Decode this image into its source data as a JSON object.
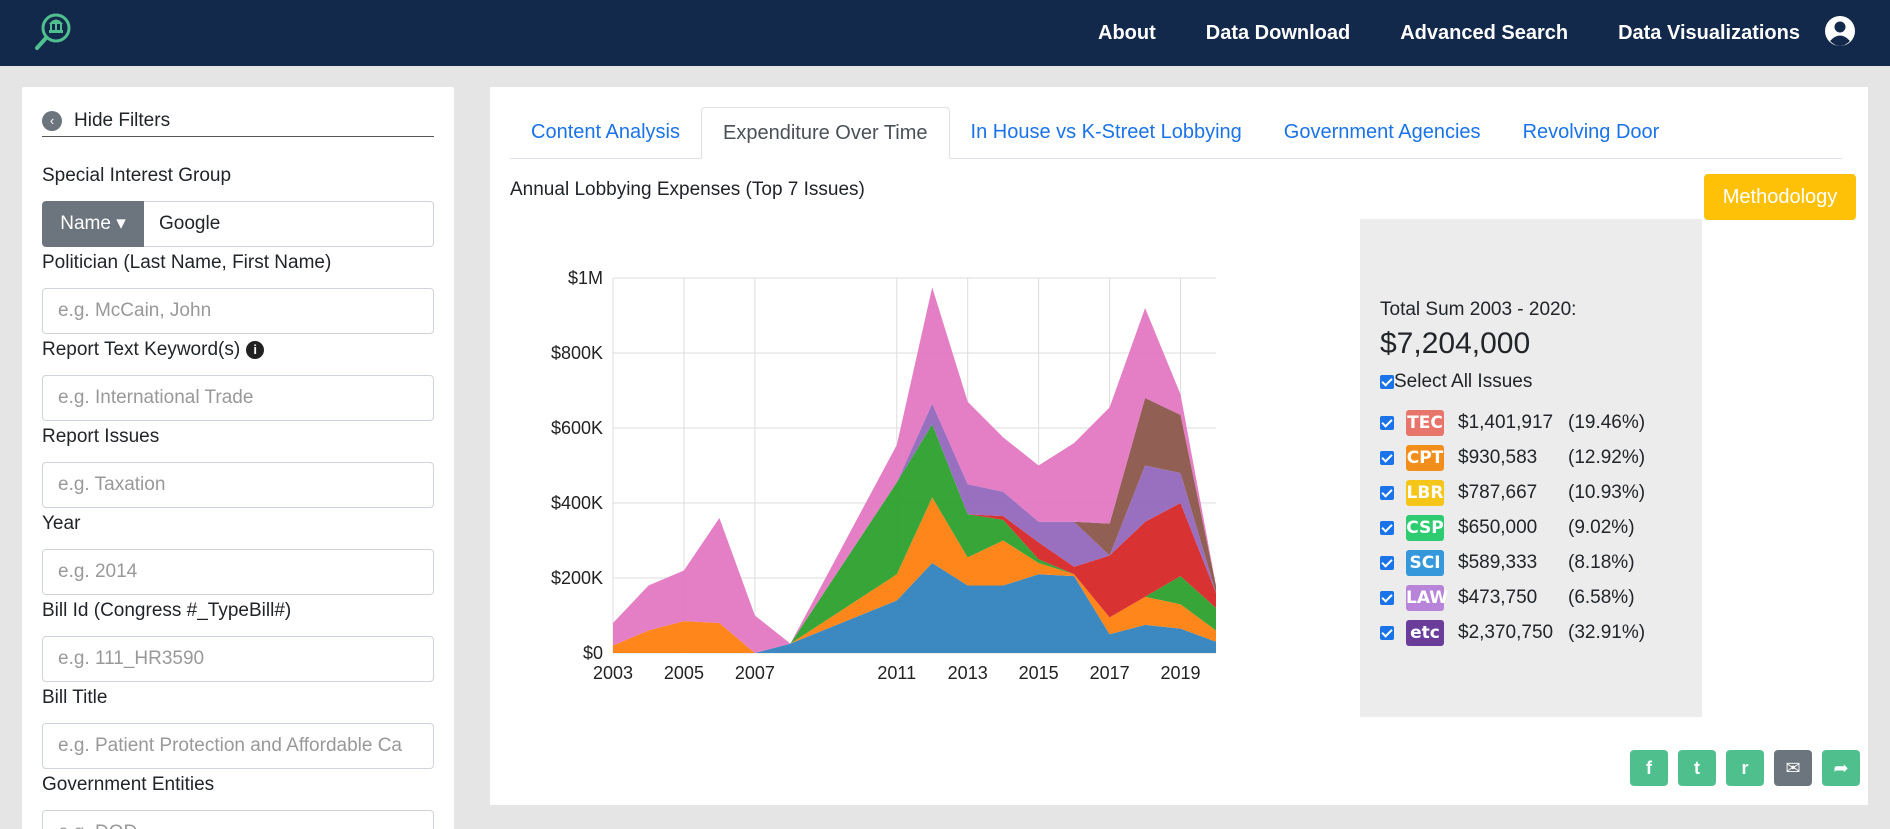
{
  "nav": {
    "links": [
      "About",
      "Data Download",
      "Advanced Search",
      "Data Visualizations"
    ]
  },
  "sidebar": {
    "hide_filters": "Hide Filters",
    "special_interest_label": "Special Interest Group",
    "name_button": "Name ▾",
    "name_value": "Google",
    "politician_label": "Politician (Last Name, First Name)",
    "politician_placeholder": "e.g. McCain, John",
    "keyword_label": "Report Text Keyword(s)",
    "keyword_placeholder": "e.g. International Trade",
    "issues_label": "Report Issues",
    "issues_placeholder": "e.g. Taxation",
    "year_label": "Year",
    "year_placeholder": "e.g. 2014",
    "bill_id_label": "Bill Id (Congress #_TypeBill#)",
    "bill_id_placeholder": "e.g. 111_HR3590",
    "bill_title_label": "Bill Title",
    "bill_title_placeholder": "e.g. Patient Protection and Affordable Ca",
    "gov_entities_label": "Government Entities",
    "gov_entities_placeholder": "e.g. DOD"
  },
  "tabs": [
    {
      "label": "Content Analysis",
      "active": false
    },
    {
      "label": "Expenditure Over Time",
      "active": true
    },
    {
      "label": "In House vs K-Street Lobbying",
      "active": false
    },
    {
      "label": "Government Agencies",
      "active": false
    },
    {
      "label": "Revolving Door",
      "active": false
    }
  ],
  "chart_title": "Annual Lobbying Expenses (Top 7 Issues)",
  "methodology": "Methodology",
  "summary": {
    "total_label": "Total Sum 2003 - 2020:",
    "total_value": "$7,204,000",
    "select_all": "Select All Issues"
  },
  "legend": [
    {
      "code": "TEC",
      "amount": "$1,401,917",
      "pct": "(19.46%)",
      "color": "#e8756c"
    },
    {
      "code": "CPT",
      "amount": "$930,583",
      "pct": "(12.92%)",
      "color": "#f28e1c"
    },
    {
      "code": "LBR",
      "amount": "$787,667",
      "pct": "(10.93%)",
      "color": "#f5c518"
    },
    {
      "code": "CSP",
      "amount": "$650,000",
      "pct": "(9.02%)",
      "color": "#2ecc71"
    },
    {
      "code": "SCI",
      "amount": "$589,333",
      "pct": "(8.18%)",
      "color": "#3498db"
    },
    {
      "code": "LAW",
      "amount": "$473,750",
      "pct": "(6.58%)",
      "color": "#b784d9"
    },
    {
      "code": "etc",
      "amount": "$2,370,750",
      "pct": "(32.91%)",
      "color": "#6a3d9a"
    }
  ],
  "share_buttons": [
    {
      "icon": "facebook-icon",
      "glyph": "f",
      "color": "#4fc08d"
    },
    {
      "icon": "twitter-icon",
      "glyph": "t",
      "color": "#4fc08d"
    },
    {
      "icon": "reddit-icon",
      "glyph": "r",
      "color": "#4fc08d"
    },
    {
      "icon": "mail-icon",
      "glyph": "✉",
      "color": "#6c757d"
    },
    {
      "icon": "share-icon",
      "glyph": "➦",
      "color": "#4fc08d"
    }
  ],
  "chart_data": {
    "type": "area",
    "stacked": true,
    "title": "Annual Lobbying Expenses (Top 7 Issues)",
    "x": [
      2003,
      2004,
      2005,
      2006,
      2007,
      2008,
      2011,
      2012,
      2013,
      2014,
      2015,
      2016,
      2017,
      2018,
      2019,
      2020
    ],
    "x_ticks": [
      "2003",
      "2005",
      "2007",
      "2011",
      "2013",
      "2015",
      "2017",
      "2019"
    ],
    "y_ticks": [
      "$0",
      "$200K",
      "$400K",
      "$600K",
      "$800K",
      "$1M"
    ],
    "ylim": [
      0,
      1000000
    ],
    "series": [
      {
        "color": "#3182bd",
        "values": [
          0,
          0,
          0,
          0,
          0,
          25000,
          140000,
          240000,
          180000,
          180000,
          210000,
          205000,
          50000,
          75000,
          65000,
          30000
        ]
      },
      {
        "color": "#ff7f0e",
        "values": [
          20000,
          60000,
          85000,
          80000,
          0,
          0,
          70000,
          175000,
          75000,
          120000,
          30000,
          5000,
          45000,
          75000,
          65000,
          30000
        ]
      },
      {
        "color": "#2ca02c",
        "values": [
          0,
          0,
          0,
          0,
          0,
          0,
          245000,
          195000,
          115000,
          55000,
          10000,
          0,
          0,
          0,
          75000,
          60000
        ]
      },
      {
        "color": "#d62728",
        "values": [
          0,
          0,
          0,
          0,
          0,
          0,
          0,
          0,
          0,
          10000,
          45000,
          20000,
          165000,
          200000,
          195000,
          40000
        ]
      },
      {
        "color": "#9467bd",
        "values": [
          0,
          0,
          0,
          0,
          0,
          0,
          0,
          55000,
          80000,
          65000,
          55000,
          120000,
          0,
          150000,
          80000,
          0
        ]
      },
      {
        "color": "#8c564b",
        "values": [
          0,
          0,
          0,
          0,
          0,
          0,
          0,
          0,
          0,
          0,
          0,
          0,
          85000,
          180000,
          155000,
          20000
        ]
      },
      {
        "color": "#e377c2",
        "values": [
          60000,
          120000,
          135000,
          280000,
          100000,
          0,
          100000,
          310000,
          220000,
          145000,
          150000,
          210000,
          310000,
          240000,
          55000,
          0
        ]
      }
    ]
  }
}
